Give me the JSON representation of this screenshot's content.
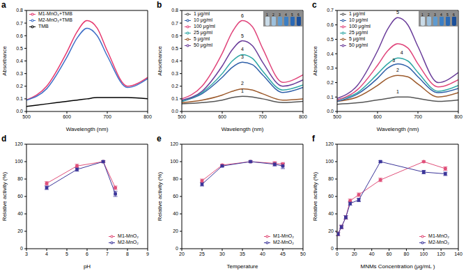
{
  "chart_data": [
    {
      "title": "a",
      "type": "line",
      "x_label": "Wavelength (nm)",
      "y_label": "Absorbance",
      "xlim": [
        500,
        800
      ],
      "xticks": [
        500,
        600,
        700,
        800
      ],
      "ylim": [
        0,
        0.8
      ],
      "yticks": [
        {
          "value": 0,
          "label": "0.0"
        },
        0.1,
        0.2,
        0.3,
        0.4,
        0.5,
        0.6,
        0.7,
        0.8
      ],
      "legend": "upper left",
      "grid": false,
      "x": [
        500,
        550,
        600,
        625,
        650,
        675,
        700,
        750,
        800
      ],
      "series": [
        {
          "name": "M1-MnO₂+TMB",
          "color": "#e6396f",
          "values": [
            0.09,
            0.2,
            0.47,
            0.63,
            0.72,
            0.66,
            0.48,
            0.2,
            0.27
          ]
        },
        {
          "name": "M2-MnO₂+TMB",
          "color": "#3f6fc7",
          "values": [
            0.09,
            0.18,
            0.43,
            0.58,
            0.66,
            0.6,
            0.44,
            0.19,
            0.26
          ]
        },
        {
          "name": "TMB",
          "color": "#000000",
          "values": [
            0.04,
            0.06,
            0.08,
            0.09,
            0.1,
            0.11,
            0.11,
            0.11,
            0.1
          ]
        }
      ]
    },
    {
      "title": "b",
      "type": "line",
      "x_label": "Wavelength (nm)",
      "y_label": "Absorbance",
      "xlim": [
        500,
        800
      ],
      "xticks": [
        500,
        600,
        700,
        800
      ],
      "ylim": [
        0,
        0.8
      ],
      "yticks": [
        {
          "value": 0,
          "label": "0.0"
        },
        0.1,
        0.2,
        0.3,
        0.4,
        0.5,
        0.6,
        0.7,
        0.8
      ],
      "legend": "upper left",
      "grid": false,
      "inset": {
        "labels": [
          "1",
          "2",
          "3",
          "4",
          "5",
          "6"
        ]
      },
      "annotations": [
        {
          "text": "1",
          "x": 650,
          "y": 0.12
        },
        {
          "text": "2",
          "x": 650,
          "y": 0.18
        },
        {
          "text": "3",
          "x": 650,
          "y": 0.39
        },
        {
          "text": "4",
          "x": 650,
          "y": 0.45
        },
        {
          "text": "5",
          "x": 650,
          "y": 0.56
        },
        {
          "text": "6",
          "x": 650,
          "y": 0.72
        }
      ],
      "x": [
        500,
        550,
        600,
        625,
        650,
        675,
        700,
        750,
        800
      ],
      "series": [
        {
          "name": "1 μg/ml",
          "color": "#555555",
          "values": [
            0.06,
            0.07,
            0.09,
            0.11,
            0.12,
            0.115,
            0.1,
            0.07,
            0.08
          ]
        },
        {
          "name": "5 μg/ml",
          "color": "#9c5a2c",
          "values": [
            0.07,
            0.09,
            0.13,
            0.16,
            0.18,
            0.17,
            0.14,
            0.09,
            0.1
          ]
        },
        {
          "name": "10 μg/ml",
          "color": "#2e5fa8",
          "values": [
            0.08,
            0.14,
            0.27,
            0.35,
            0.39,
            0.37,
            0.29,
            0.15,
            0.19
          ]
        },
        {
          "name": "25 μg/ml",
          "color": "#2ca6a4",
          "values": [
            0.08,
            0.15,
            0.3,
            0.4,
            0.45,
            0.42,
            0.32,
            0.17,
            0.21
          ]
        },
        {
          "name": "50 μg/ml",
          "color": "#6a3d9a",
          "values": [
            0.09,
            0.16,
            0.36,
            0.49,
            0.56,
            0.52,
            0.39,
            0.2,
            0.25
          ]
        },
        {
          "name": "100 μg/ml",
          "color": "#e0457b",
          "values": [
            0.1,
            0.2,
            0.46,
            0.63,
            0.72,
            0.67,
            0.5,
            0.23,
            0.29
          ]
        }
      ]
    },
    {
      "title": "c",
      "type": "line",
      "x_label": "Wavelength (nm)",
      "y_label": "Absorbance",
      "xlim": [
        500,
        800
      ],
      "xticks": [
        500,
        600,
        700,
        800
      ],
      "ylim": [
        0,
        0.7
      ],
      "yticks": [
        {
          "value": 0,
          "label": "0.0"
        },
        0.1,
        0.2,
        0.3,
        0.4,
        0.5,
        0.6,
        0.7
      ],
      "legend": "upper left",
      "grid": false,
      "inset": {
        "labels": [
          "1",
          "2",
          "3",
          "4",
          "5",
          "6"
        ]
      },
      "annotations": [
        {
          "text": "1",
          "x": 650,
          "y": 0.1
        },
        {
          "text": "2",
          "x": 650,
          "y": 0.25
        },
        {
          "text": "3",
          "x": 640,
          "y": 0.32
        },
        {
          "text": "4",
          "x": 660,
          "y": 0.37
        },
        {
          "text": "5",
          "x": 650,
          "y": 0.65
        }
      ],
      "x": [
        500,
        550,
        600,
        625,
        650,
        675,
        700,
        750,
        800
      ],
      "series": [
        {
          "name": "1 μg/ml",
          "color": "#555555",
          "values": [
            0.05,
            0.06,
            0.08,
            0.09,
            0.1,
            0.1,
            0.09,
            0.07,
            0.08
          ]
        },
        {
          "name": "5 μg/ml",
          "color": "#9c5a2c",
          "values": [
            0.07,
            0.1,
            0.18,
            0.23,
            0.25,
            0.24,
            0.19,
            0.1,
            0.13
          ]
        },
        {
          "name": "10 μg/ml",
          "color": "#2e5fa8",
          "values": [
            0.07,
            0.12,
            0.23,
            0.3,
            0.33,
            0.31,
            0.24,
            0.13,
            0.16
          ]
        },
        {
          "name": "25 μg/ml",
          "color": "#2ca6a4",
          "values": [
            0.08,
            0.13,
            0.26,
            0.33,
            0.37,
            0.35,
            0.27,
            0.14,
            0.18
          ]
        },
        {
          "name": "50 μg/ml",
          "color": "#6a3d9a",
          "values": [
            0.09,
            0.18,
            0.42,
            0.57,
            0.65,
            0.6,
            0.45,
            0.2,
            0.27
          ]
        },
        {
          "name": "100 μg/ml",
          "color": "#e0457b",
          "values": [
            0.08,
            0.15,
            0.32,
            0.42,
            0.47,
            0.44,
            0.33,
            0.17,
            0.22
          ]
        }
      ]
    },
    {
      "title": "d",
      "type": "line",
      "x_label": "pH",
      "y_label": "Relative activity (%)",
      "xlim": [
        3,
        9
      ],
      "xticks": [
        3,
        4,
        5,
        6,
        7,
        8,
        9
      ],
      "ylim": [
        0,
        120
      ],
      "yticks": [
        0,
        20,
        40,
        60,
        80,
        100,
        120
      ],
      "legend": "lower right",
      "grid": false,
      "x": [
        4,
        5.5,
        6.8,
        7.4
      ],
      "series": [
        {
          "name": "M1-MnO₂",
          "color": "#e0507a",
          "marker": "circle",
          "values": [
            75,
            95,
            100,
            70
          ],
          "errors": [
            2,
            2,
            1,
            2
          ]
        },
        {
          "name": "M2-MnO₂",
          "color": "#3b3599",
          "marker": "square",
          "values": [
            70,
            91,
            100,
            63
          ],
          "errors": [
            2,
            2,
            1,
            3
          ]
        }
      ]
    },
    {
      "title": "e",
      "type": "line",
      "x_label": "Temperature",
      "y_label": "Relative activity (%)",
      "xlim": [
        20,
        50
      ],
      "xticks": [
        20,
        25,
        30,
        35,
        40,
        45,
        50
      ],
      "ylim": [
        0,
        120
      ],
      "yticks": [
        0,
        20,
        40,
        60,
        80,
        100,
        120
      ],
      "legend": "lower right",
      "grid": false,
      "x": [
        25,
        30,
        37,
        43,
        45
      ],
      "series": [
        {
          "name": "M1-MnO₂",
          "color": "#e0507a",
          "marker": "circle",
          "values": [
            78,
            96,
            100,
            98,
            97
          ],
          "errors": [
            2,
            1,
            1,
            2,
            2
          ]
        },
        {
          "name": "M2-MnO₂",
          "color": "#3b3599",
          "marker": "square",
          "values": [
            74,
            95,
            100,
            97,
            95
          ],
          "errors": [
            2,
            1,
            1,
            2,
            3
          ]
        }
      ]
    },
    {
      "title": "f",
      "type": "line",
      "x_label": "MNMs Concentration (μg/mL )",
      "y_label": "Relative activity (%)",
      "xlim": [
        0,
        140
      ],
      "xticks": [
        0,
        20,
        40,
        60,
        80,
        100,
        120,
        140
      ],
      "ylim": [
        0,
        120
      ],
      "yticks": [
        0,
        20,
        40,
        60,
        80,
        100,
        120
      ],
      "legend": "lower right",
      "grid": false,
      "x": [
        1,
        5,
        10,
        15,
        25,
        50,
        100,
        125
      ],
      "series": [
        {
          "name": "M1-MnO₂",
          "color": "#e0507a",
          "marker": "circle",
          "values": [
            17,
            25,
            36,
            55,
            62,
            79,
            100,
            92
          ],
          "errors": [
            2,
            2,
            2,
            2,
            2,
            2,
            1,
            2
          ]
        },
        {
          "name": "M2-MnO₂",
          "color": "#3b3599",
          "marker": "square",
          "values": [
            17,
            25,
            36,
            52,
            56,
            100,
            88,
            86
          ],
          "errors": [
            2,
            2,
            2,
            2,
            2,
            1,
            2,
            2
          ]
        }
      ]
    }
  ]
}
